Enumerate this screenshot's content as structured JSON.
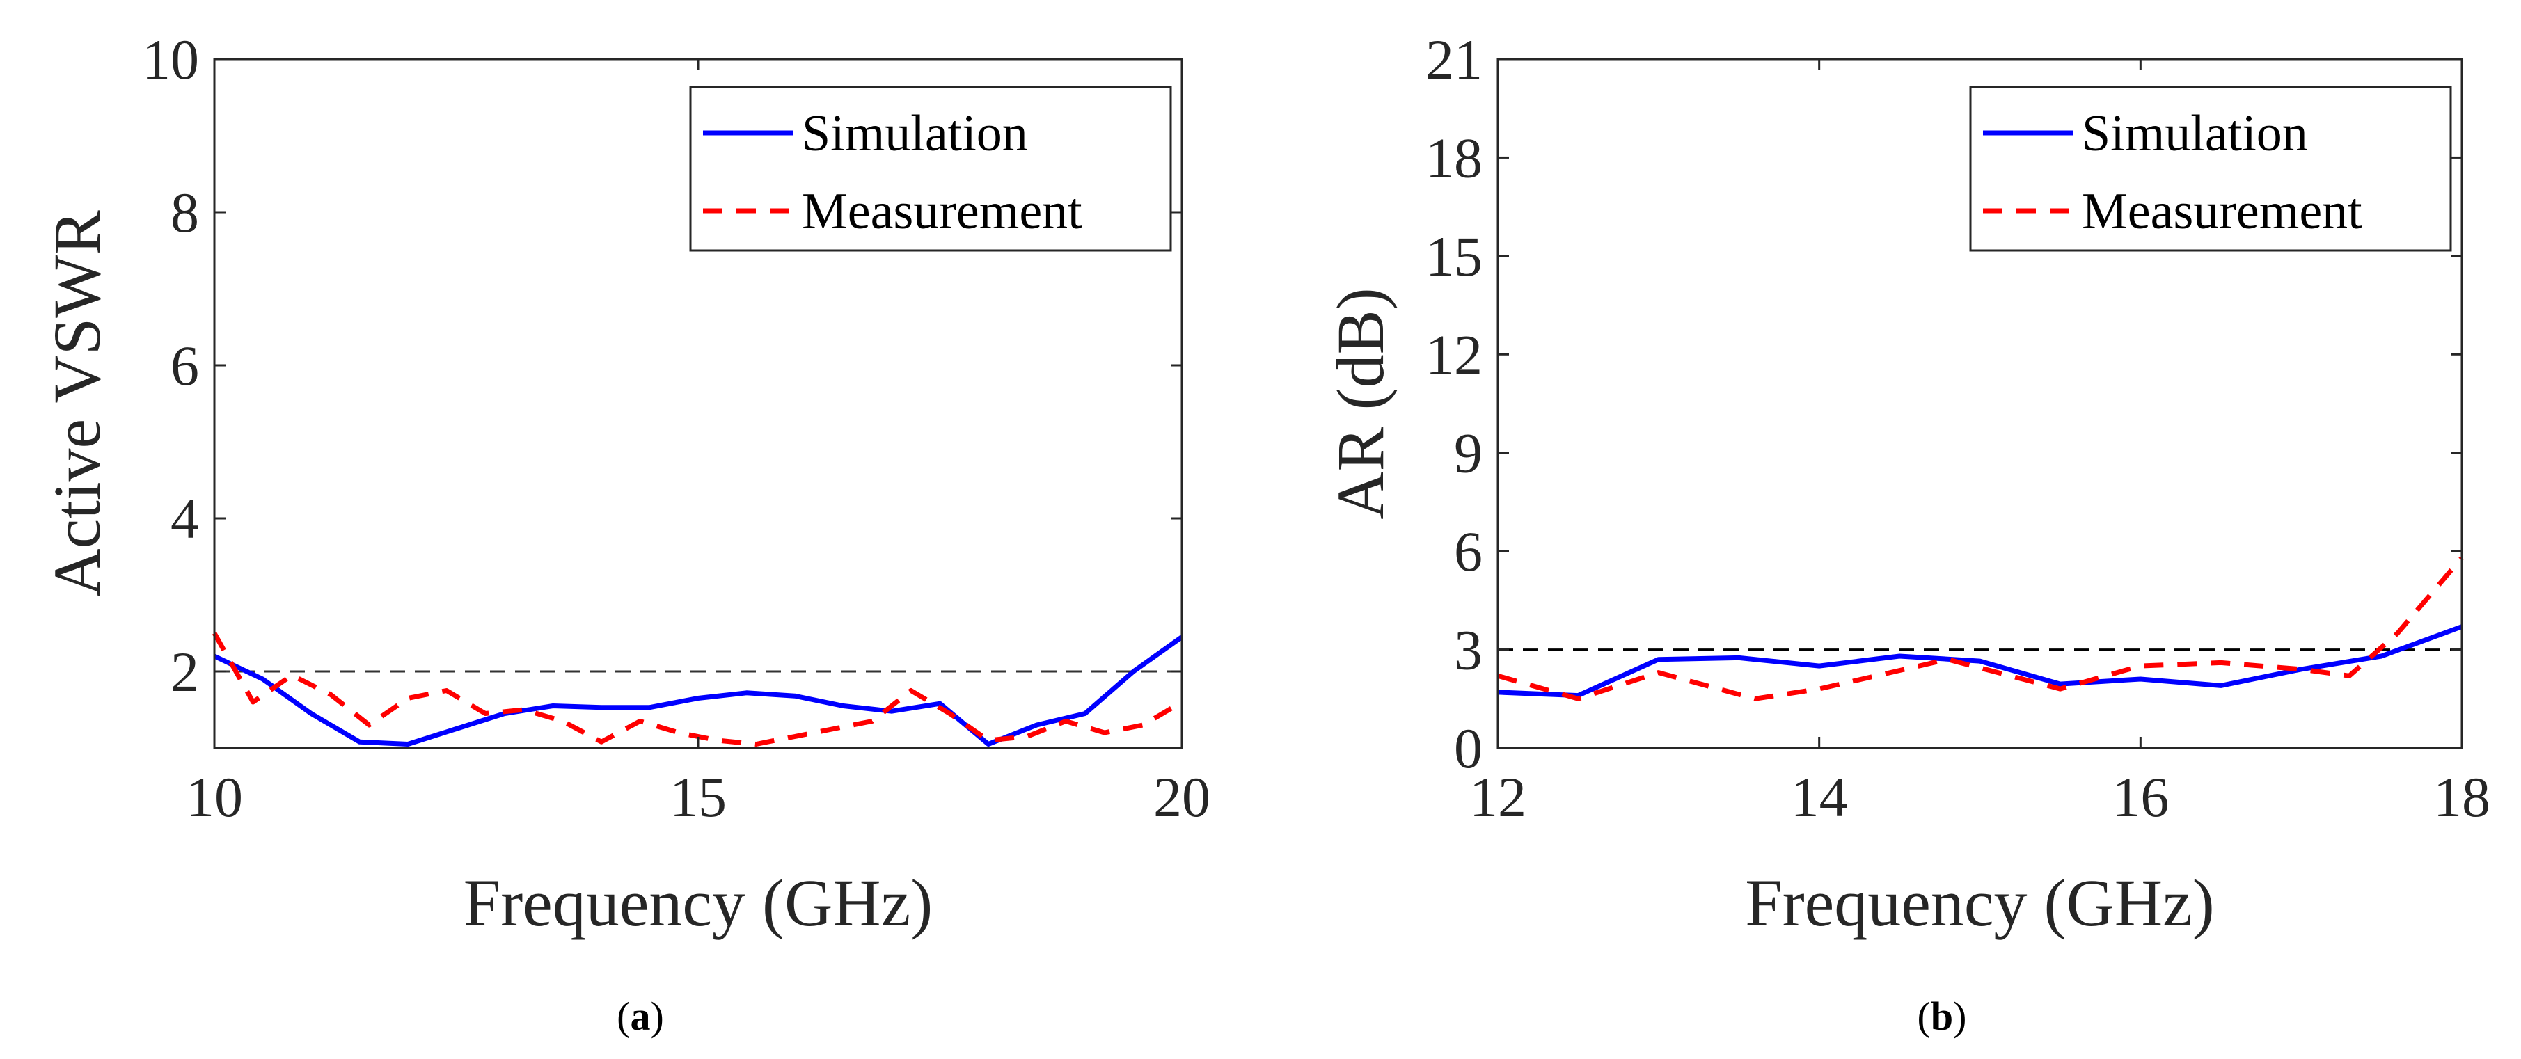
{
  "chart_data": [
    {
      "type": "line",
      "caption": "(a)",
      "caption_letter": "a",
      "xlabel": "Frequency (GHz)",
      "ylabel": "Active VSWR",
      "xlim": [
        10,
        20
      ],
      "ylim": [
        1,
        10
      ],
      "xticks": [
        10,
        15,
        20
      ],
      "yticks": [
        2,
        4,
        6,
        8,
        10
      ],
      "grid": false,
      "legend_position": "top-right",
      "reference_line": {
        "y": 2,
        "style": "dashed",
        "color": "#333333"
      },
      "series": [
        {
          "name": "Simulation",
          "color": "#0000ff",
          "style": "solid",
          "x": [
            10,
            10.5,
            11,
            11.5,
            12,
            12.5,
            13,
            13.5,
            14,
            14.5,
            15,
            15.5,
            16,
            16.5,
            17,
            17.5,
            18,
            18.5,
            19,
            19.5,
            20
          ],
          "y": [
            2.2,
            1.9,
            1.45,
            1.08,
            1.05,
            1.25,
            1.45,
            1.55,
            1.53,
            1.53,
            1.65,
            1.72,
            1.68,
            1.55,
            1.48,
            1.58,
            1.05,
            1.3,
            1.45,
            2.0,
            2.45
          ]
        },
        {
          "name": "Measurement",
          "color": "#ff0000",
          "style": "dashed",
          "x": [
            10,
            10.4,
            10.8,
            11.2,
            11.6,
            12,
            12.4,
            12.8,
            13.2,
            13.6,
            14,
            14.4,
            14.8,
            15.2,
            15.6,
            16,
            16.4,
            16.8,
            17.2,
            17.6,
            18,
            18.4,
            18.8,
            19.2,
            19.6,
            20
          ],
          "y": [
            2.5,
            1.6,
            1.95,
            1.7,
            1.3,
            1.65,
            1.75,
            1.45,
            1.5,
            1.35,
            1.08,
            1.35,
            1.2,
            1.1,
            1.05,
            1.15,
            1.25,
            1.35,
            1.75,
            1.45,
            1.1,
            1.15,
            1.35,
            1.2,
            1.3,
            1.6
          ]
        }
      ]
    },
    {
      "type": "line",
      "caption": "(b)",
      "caption_letter": "b",
      "xlabel": "Frequency (GHz)",
      "ylabel": "AR (dB)",
      "xlim": [
        12,
        18
      ],
      "ylim": [
        0,
        21
      ],
      "xticks": [
        12,
        14,
        16,
        18
      ],
      "yticks": [
        0,
        3,
        6,
        9,
        12,
        15,
        18,
        21
      ],
      "grid": false,
      "legend_position": "top-right",
      "reference_line": {
        "y": 3,
        "style": "dashed",
        "color": "#000000"
      },
      "series": [
        {
          "name": "Simulation",
          "color": "#0000ff",
          "style": "solid",
          "x": [
            12,
            12.5,
            13,
            13.5,
            14,
            14.5,
            15,
            15.5,
            16,
            16.5,
            17,
            17.5,
            18
          ],
          "y": [
            1.7,
            1.6,
            2.7,
            2.75,
            2.5,
            2.8,
            2.65,
            1.95,
            2.1,
            1.9,
            2.4,
            2.8,
            3.7
          ]
        },
        {
          "name": "Measurement",
          "color": "#ff0000",
          "style": "dashed",
          "x": [
            12,
            12.5,
            13,
            13.6,
            14,
            14.8,
            15.5,
            16,
            16.5,
            17,
            17.3,
            17.6,
            18
          ],
          "y": [
            2.2,
            1.5,
            2.3,
            1.5,
            1.8,
            2.7,
            1.8,
            2.5,
            2.6,
            2.4,
            2.2,
            3.5,
            5.8
          ]
        }
      ]
    }
  ]
}
